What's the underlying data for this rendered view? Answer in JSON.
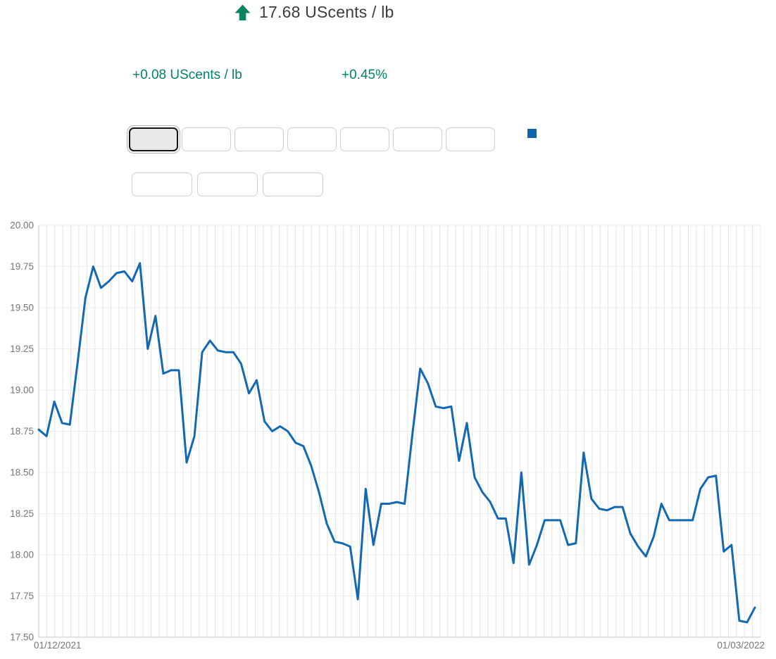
{
  "header": {
    "trend_icon": "up-arrow",
    "price": "17.68 UScents / lb",
    "change_absolute": "+0.08 UScents / lb",
    "change_percent": "+0.45%"
  },
  "colors": {
    "trend_green": "#0A8465",
    "change_text_green": "#00826B",
    "line_blue": "#1268B3",
    "legend_blue": "#0E65B0",
    "price_text": "#3C3C3C",
    "axis_text": "#757575"
  },
  "toolbar": {
    "range_buttons": [
      {
        "label": "",
        "selected": true
      },
      {
        "label": "",
        "selected": false
      },
      {
        "label": "",
        "selected": false
      },
      {
        "label": "",
        "selected": false
      },
      {
        "label": "",
        "selected": false
      },
      {
        "label": "",
        "selected": false
      },
      {
        "label": "",
        "selected": false
      }
    ],
    "secondary_buttons": [
      {
        "label": ""
      },
      {
        "label": ""
      },
      {
        "label": ""
      }
    ],
    "legend_marker": "blue-square"
  },
  "chart_data": {
    "type": "line",
    "title": "",
    "xlabel": "",
    "ylabel": "",
    "unit": "UScents / lb",
    "x_start_label": "01/12/2021",
    "x_end_label": "01/03/2022",
    "ylim": [
      17.5,
      20.0
    ],
    "y_ticks": [
      "20.00",
      "19.75",
      "19.50",
      "19.25",
      "19.00",
      "18.75",
      "18.50",
      "18.25",
      "18.00",
      "17.75",
      "17.50"
    ],
    "x_gridlines": 90,
    "grid": true,
    "grid_color_vertical": "#e3e3e3",
    "grid_color_horizontal": "#ededed",
    "axis_color": "#c6c6c6",
    "line_color": "#1268B3",
    "legend_position": "none",
    "values": [
      18.76,
      18.72,
      18.93,
      18.8,
      18.79,
      19.17,
      19.56,
      19.75,
      19.62,
      19.66,
      19.71,
      19.72,
      19.66,
      19.77,
      19.25,
      19.45,
      19.1,
      19.12,
      19.12,
      18.56,
      18.72,
      19.23,
      19.3,
      19.24,
      19.23,
      19.23,
      19.16,
      18.98,
      19.06,
      18.81,
      18.75,
      18.78,
      18.75,
      18.68,
      18.66,
      18.54,
      18.38,
      18.19,
      18.08,
      18.07,
      18.05,
      17.73,
      18.4,
      18.06,
      18.31,
      18.31,
      18.32,
      18.31,
      18.73,
      19.13,
      19.04,
      18.9,
      18.89,
      18.9,
      18.57,
      18.8,
      18.47,
      18.38,
      18.32,
      18.22,
      18.22,
      17.95,
      18.5,
      17.94,
      18.06,
      18.21,
      18.21,
      18.21,
      18.06,
      18.07,
      18.62,
      18.34,
      18.28,
      18.27,
      18.29,
      18.29,
      18.13,
      18.05,
      17.99,
      18.11,
      18.31,
      18.21,
      18.21,
      18.21,
      18.21,
      18.4,
      18.47,
      18.48,
      18.02,
      18.06,
      17.6,
      17.59,
      17.68
    ]
  }
}
